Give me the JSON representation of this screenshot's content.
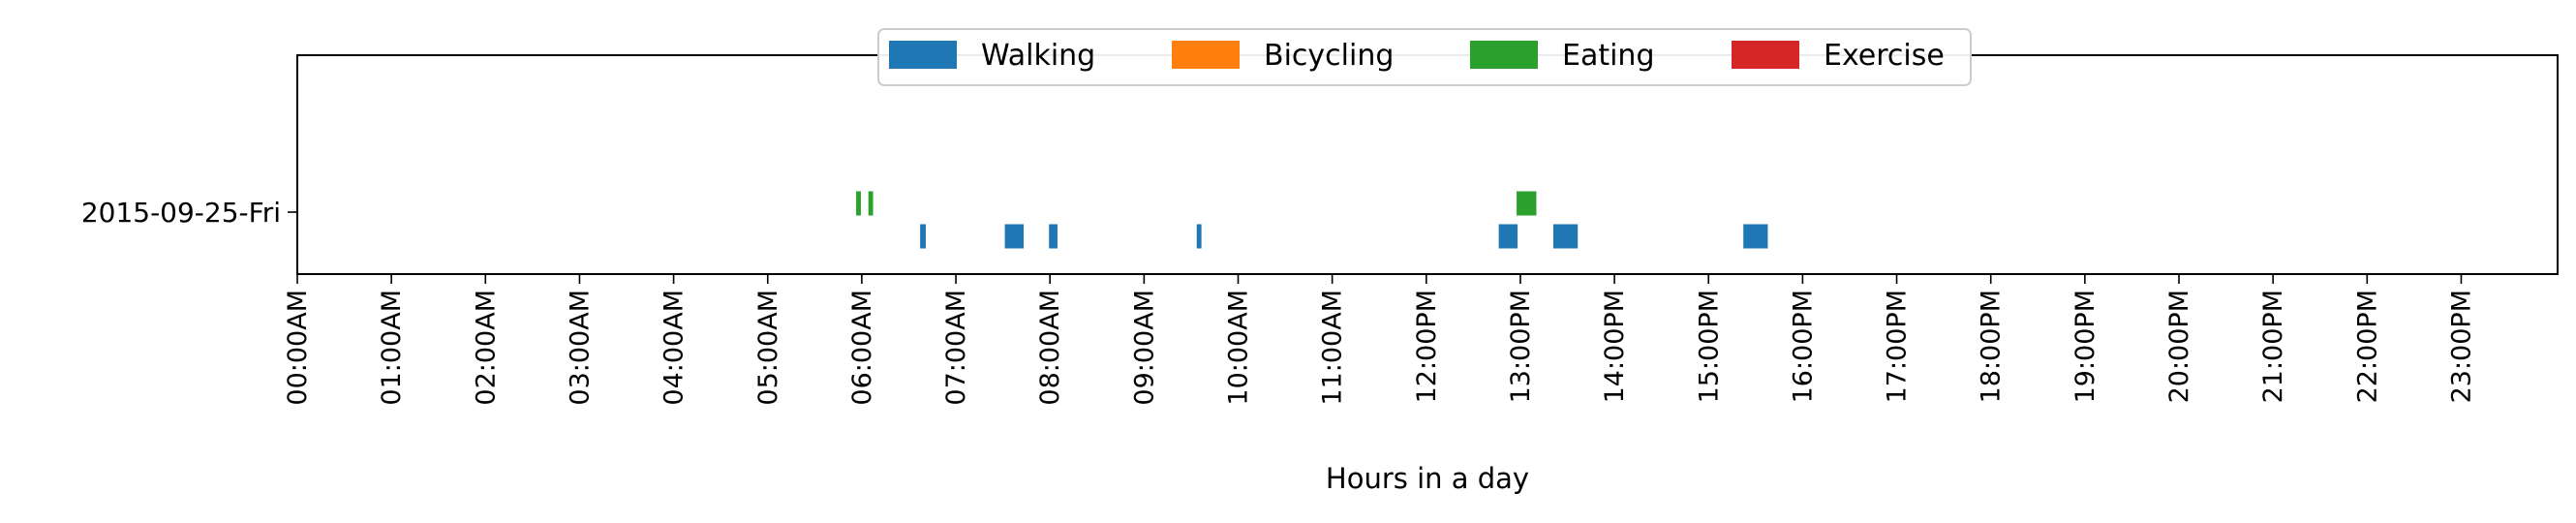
{
  "chart_data": {
    "type": "timeline",
    "title": "",
    "xlabel": "Hours in a day",
    "ylabel": "",
    "xlim": [
      0,
      24
    ],
    "x_tick_labels": [
      "00:00AM",
      "01:00AM",
      "02:00AM",
      "03:00AM",
      "04:00AM",
      "05:00AM",
      "06:00AM",
      "07:00AM",
      "08:00AM",
      "09:00AM",
      "10:00AM",
      "11:00AM",
      "12:00PM",
      "13:00PM",
      "14:00PM",
      "15:00PM",
      "16:00PM",
      "17:00PM",
      "18:00PM",
      "19:00PM",
      "20:00PM",
      "21:00PM",
      "22:00PM",
      "23:00PM"
    ],
    "categories": [
      "2015-09-25-Fri"
    ],
    "legend": {
      "placement": "top-center",
      "entries": [
        {
          "name": "Walking",
          "color": "#1f77b4"
        },
        {
          "name": "Bicycling",
          "color": "#ff7f0e"
        },
        {
          "name": "Eating",
          "color": "#2ca02c"
        },
        {
          "name": "Exercise",
          "color": "#d62728"
        }
      ]
    },
    "series": [
      {
        "name": "Walking",
        "color": "#1f77b4",
        "intervals": [
          {
            "start": 6.62,
            "end": 6.68
          },
          {
            "start": 7.52,
            "end": 7.72
          },
          {
            "start": 7.99,
            "end": 8.08
          },
          {
            "start": 9.56,
            "end": 9.61
          },
          {
            "start": 12.77,
            "end": 12.97
          },
          {
            "start": 13.35,
            "end": 13.61
          },
          {
            "start": 15.37,
            "end": 15.63
          }
        ]
      },
      {
        "name": "Bicycling",
        "color": "#ff7f0e",
        "intervals": []
      },
      {
        "name": "Eating",
        "color": "#2ca02c",
        "intervals": [
          {
            "start": 5.94,
            "end": 5.99
          },
          {
            "start": 6.07,
            "end": 6.12
          },
          {
            "start": 12.96,
            "end": 13.17
          }
        ]
      },
      {
        "name": "Exercise",
        "color": "#d62728",
        "intervals": []
      }
    ]
  }
}
